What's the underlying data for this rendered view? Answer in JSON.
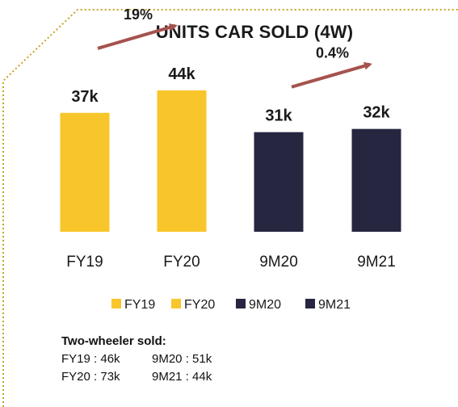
{
  "chart_data": {
    "type": "bar",
    "title": "UNITS CAR SOLD (4W)",
    "categories": [
      "FY19",
      "FY20",
      "9M20",
      "9M21"
    ],
    "values": [
      37,
      44,
      31,
      32
    ],
    "value_labels": [
      "37k",
      "44k",
      "31k",
      "32k"
    ],
    "bar_colors": [
      "#f8c62a",
      "#f8c62a",
      "#262640",
      "#262640"
    ],
    "ylim": [
      0,
      48
    ],
    "legend": {
      "position": "bottom",
      "entries": [
        {
          "label": "FY19",
          "color": "#f8c62a"
        },
        {
          "label": "FY20",
          "color": "#f8c62a"
        },
        {
          "label": "9M20",
          "color": "#262640"
        },
        {
          "label": "9M21",
          "color": "#262640"
        }
      ]
    },
    "growth_annotations": [
      {
        "label": "19%",
        "from": "FY19",
        "to": "FY20"
      },
      {
        "label": "0.4%",
        "from": "9M20",
        "to": "9M21"
      }
    ],
    "arrow_color": "#a5524d"
  },
  "two_wheeler": {
    "title": "Two-wheeler sold:",
    "rows": [
      [
        "FY19 : 46k",
        "9M20 : 51k"
      ],
      [
        "FY20 : 73k",
        "9M21 : 44k"
      ]
    ]
  },
  "border_color": "#c9a227"
}
